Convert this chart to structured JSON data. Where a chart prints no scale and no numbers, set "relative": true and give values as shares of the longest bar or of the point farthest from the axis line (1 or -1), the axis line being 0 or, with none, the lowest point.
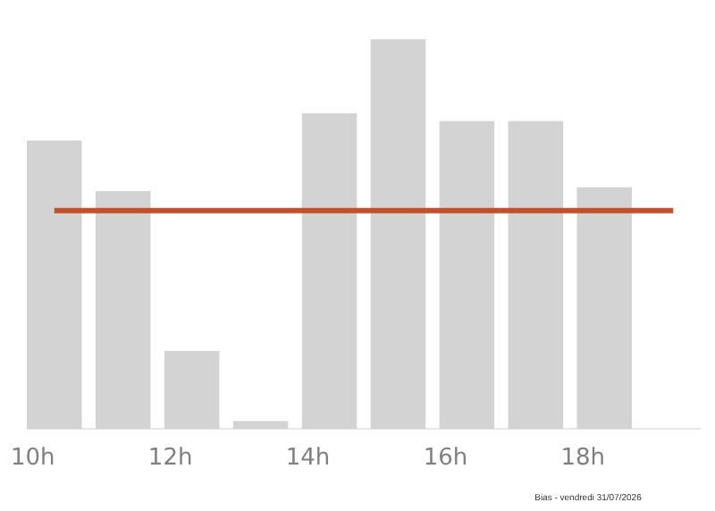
{
  "chart_data": {
    "type": "bar",
    "relative": true,
    "categories": [
      "10h",
      null,
      "12h",
      null,
      "14h",
      null,
      "16h",
      null,
      "18h",
      null
    ],
    "values": [
      0.74,
      0.61,
      0.2,
      0.02,
      0.81,
      1,
      0.79,
      0.79,
      0.62,
      null
    ],
    "color": "#d3d3d3",
    "ref_lines": [
      {
        "axis": "y",
        "value": 0.56,
        "color": "#c4502a"
      }
    ],
    "annotations": [
      "Bias - vendredi 31/07/2026"
    ],
    "grid": false
  }
}
